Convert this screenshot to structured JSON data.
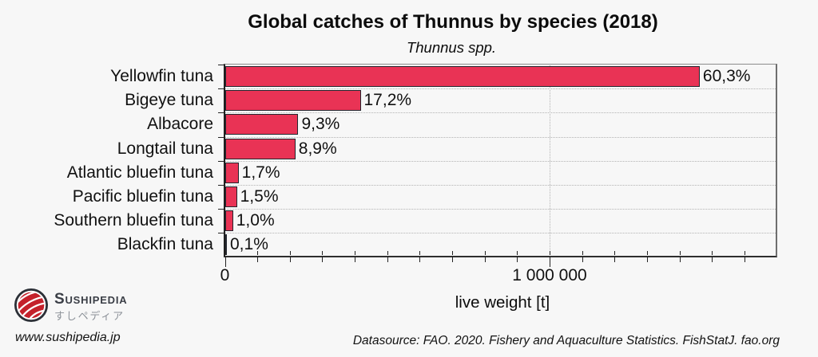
{
  "page": {
    "background": "#f7f7f7"
  },
  "chart_data": {
    "type": "bar",
    "orientation": "horizontal",
    "title": "Global catches of Thunnus by species (2018)",
    "subtitle": "Thunnus spp.",
    "xlabel": "live weight [t]",
    "categories": [
      "Yellowfin tuna",
      "Bigeye tuna",
      "Albacore",
      "Longtail tuna",
      "Atlantic bluefin tuna",
      "Pacific bluefin tuna",
      "Southern bluefin tuna",
      "Blackfin tuna"
    ],
    "percent_labels": [
      "60,3%",
      "17,2%",
      "9,3%",
      "8,9%",
      "1,7%",
      "1,5%",
      "1,0%",
      "0,1%"
    ],
    "percent_values": [
      60.3,
      17.2,
      9.3,
      8.9,
      1.7,
      1.5,
      1.0,
      0.1
    ],
    "values_tonnes": [
      1461000,
      417000,
      225000,
      216000,
      41000,
      36000,
      24000,
      2400
    ],
    "xlim": [
      0,
      1705000
    ],
    "xticks_major": [
      {
        "value": 0,
        "label": "0"
      },
      {
        "value": 1000000,
        "label": "1 000 000"
      }
    ],
    "xtick_minor_step": 100000,
    "grid": "dotted",
    "legend": "none",
    "bar_color": "#e93355",
    "bar_border_color": "#23262e"
  },
  "footer": {
    "brand_name": "Sushipedia",
    "brand_name_jp": "すしペディア",
    "website": "www.sushipedia.jp",
    "datasource": "Datasource: FAO. 2020. Fishery and Aquaculture Statistics. FishStatJ. fao.org",
    "logo_red": "#c4212b",
    "logo_ring": "#2c3037"
  }
}
